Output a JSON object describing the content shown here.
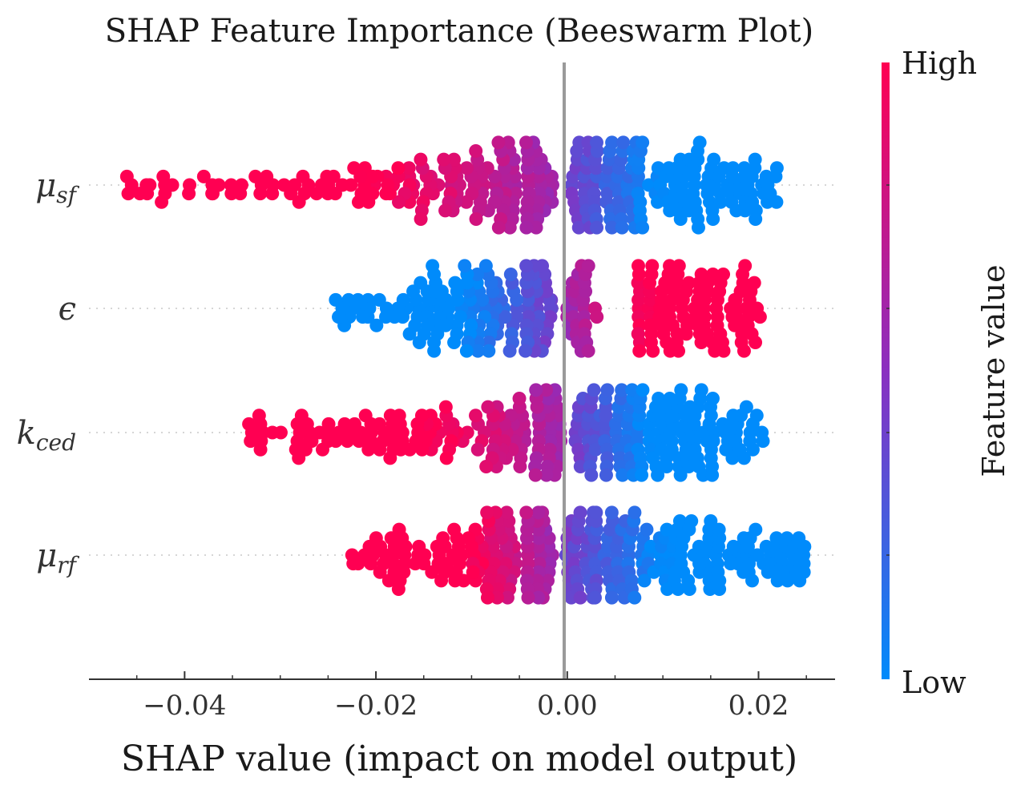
{
  "chart_data": {
    "type": "scatter",
    "subtype": "beeswarm",
    "title": "SHAP Feature Importance (Beeswarm Plot)",
    "xlabel": "SHAP value (impact on model output)",
    "xlim": [
      -0.05,
      0.028
    ],
    "xticks": [
      -0.04,
      -0.02,
      0.0,
      0.02
    ],
    "xtick_labels": [
      "−0.04",
      "−0.02",
      "0.00",
      "0.02"
    ],
    "zero_line": 0.0,
    "features": [
      {
        "label": "μ",
        "sub": "sf",
        "neg_min": -0.0465,
        "neg_max": -0.0015,
        "pos_min": 0.0003,
        "pos_max": 0.0225,
        "peak_neg": -0.0038,
        "peak_pos": 0.003,
        "neg_color": "high",
        "pos_color": "low",
        "n": 430
      },
      {
        "label": "ϵ",
        "sub": "",
        "neg_min": -0.0245,
        "neg_max": -0.0015,
        "pos_min": 0.0,
        "pos_max": 0.0205,
        "peak_neg": -0.0035,
        "peak_pos": 0.0075,
        "neg_color": "low",
        "pos_color": "high",
        "n": 430
      },
      {
        "label": "k",
        "sub": "ced",
        "neg_min": -0.034,
        "neg_max": -0.0005,
        "pos_min": 0.0005,
        "pos_max": 0.0205,
        "peak_neg": -0.0012,
        "peak_pos": 0.004,
        "neg_color": "high",
        "pos_color": "low",
        "n": 430
      },
      {
        "label": "μ",
        "sub": "rf",
        "neg_min": -0.023,
        "neg_max": -0.0015,
        "pos_min": 0.0,
        "pos_max": 0.025,
        "peak_neg": -0.0025,
        "peak_pos": 0.003,
        "neg_color": "high",
        "pos_color": "low",
        "n": 430
      }
    ],
    "colorbar": {
      "label": "Feature value",
      "high_label": "High",
      "low_label": "Low",
      "high_color": "#ff0052",
      "mid_color": "#8a2fc0",
      "low_color": "#008bfb"
    }
  }
}
